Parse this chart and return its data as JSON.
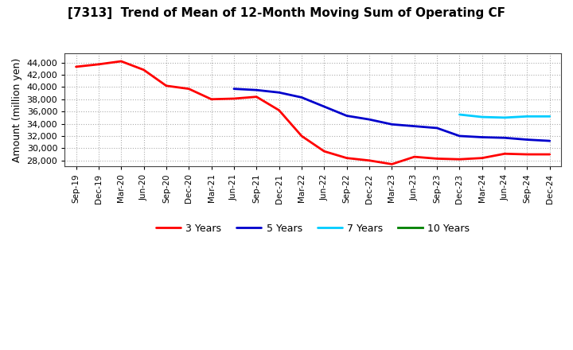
{
  "title": "[7313]  Trend of Mean of 12-Month Moving Sum of Operating CF",
  "ylabel": "Amount (million yen)",
  "background_color": "#ffffff",
  "plot_bg_color": "#ffffff",
  "grid_color": "#999999",
  "x_labels": [
    "Sep-19",
    "Dec-19",
    "Mar-20",
    "Jun-20",
    "Sep-20",
    "Dec-20",
    "Mar-21",
    "Jun-21",
    "Sep-21",
    "Dec-21",
    "Mar-22",
    "Jun-22",
    "Sep-22",
    "Dec-22",
    "Mar-23",
    "Jun-23",
    "Sep-23",
    "Dec-23",
    "Mar-24",
    "Jun-24",
    "Sep-24",
    "Dec-24"
  ],
  "series": {
    "3 Years": {
      "color": "#ff0000",
      "data_x": [
        0,
        1,
        2,
        3,
        4,
        5,
        6,
        7,
        8,
        9,
        10,
        11,
        12,
        13,
        14,
        15,
        16,
        17,
        18,
        19,
        20,
        21
      ],
      "data_y": [
        43300,
        43700,
        44200,
        42800,
        40200,
        39700,
        38000,
        38100,
        38400,
        36200,
        32000,
        29500,
        28400,
        28000,
        27400,
        28600,
        28300,
        28200,
        28400,
        29100,
        29000,
        29000
      ]
    },
    "5 Years": {
      "color": "#0000cc",
      "data_x": [
        7,
        8,
        9,
        10,
        11,
        12,
        13,
        14,
        15,
        16,
        17,
        18,
        19,
        20,
        21
      ],
      "data_y": [
        39700,
        39500,
        39100,
        38300,
        36800,
        35300,
        34700,
        33900,
        33600,
        33300,
        32000,
        31800,
        31700,
        31400,
        31200
      ]
    },
    "7 Years": {
      "color": "#00ccff",
      "data_x": [
        17,
        18,
        19,
        20,
        21
      ],
      "data_y": [
        35500,
        35100,
        35000,
        35200,
        35200
      ]
    },
    "10 Years": {
      "color": "#008000",
      "data_x": [],
      "data_y": []
    }
  },
  "ylim": [
    27000,
    45500
  ],
  "yticks": [
    28000,
    30000,
    32000,
    34000,
    36000,
    38000,
    40000,
    42000,
    44000
  ],
  "legend_labels": [
    "3 Years",
    "5 Years",
    "7 Years",
    "10 Years"
  ],
  "legend_colors": [
    "#ff0000",
    "#0000cc",
    "#00ccff",
    "#008000"
  ],
  "title_fontsize": 11,
  "ylabel_fontsize": 9,
  "tick_fontsize": 8,
  "xtick_fontsize": 7.5,
  "linewidth": 2.0
}
